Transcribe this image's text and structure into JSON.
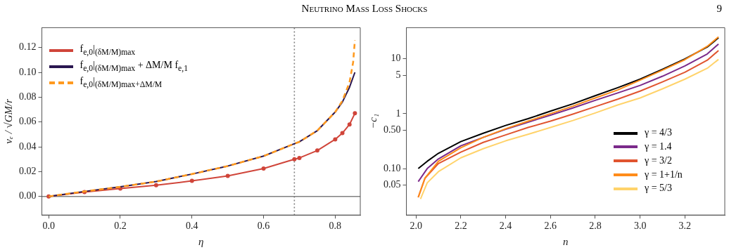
{
  "chart_data": [
    {
      "type": "line",
      "annotations": [
        "Neutrino Mass Loss Shocks",
        "9"
      ],
      "xlabel": "η",
      "ylabel": "vₑ / √GM/r",
      "xlim": [
        -0.019,
        0.87
      ],
      "ylim": [
        -0.015,
        0.136
      ],
      "xticks": [
        {
          "value": 0,
          "label": "0.0"
        },
        {
          "value": 0.2,
          "label": "0.2"
        },
        {
          "value": 0.4,
          "label": "0.4"
        },
        {
          "value": 0.6,
          "label": "0.6"
        },
        {
          "value": 0.8,
          "label": "0.8"
        }
      ],
      "yticks": [
        {
          "value": 0,
          "label": "0.00"
        },
        {
          "value": 0.02,
          "label": "0.02"
        },
        {
          "value": 0.04,
          "label": "0.04"
        },
        {
          "value": 0.06,
          "label": "0.06"
        },
        {
          "value": 0.08,
          "label": "0.08"
        },
        {
          "value": 0.1,
          "label": "0.10"
        },
        {
          "value": 0.12,
          "label": "0.12"
        }
      ],
      "legend": "top left",
      "ref_lines": [
        {
          "axis": "x",
          "value": 0.686,
          "color": "#808080",
          "line_style": "dotted"
        },
        {
          "axis": "y",
          "value": 0,
          "color": "#808080",
          "line_style": "solid"
        }
      ],
      "series": [
        {
          "name": "f$_{e,0}$|$_{(δM/M)max}$",
          "color": "#d0453a",
          "marker": "circle",
          "x": [
            0,
            0.1,
            0.2,
            0.3,
            0.4,
            0.5,
            0.6,
            0.686,
            0.7,
            0.75,
            0.8,
            0.82,
            0.84,
            0.855
          ],
          "values": [
            0,
            0.0035,
            0.0063,
            0.009,
            0.0125,
            0.0165,
            0.0225,
            0.03,
            0.031,
            0.037,
            0.046,
            0.051,
            0.058,
            0.067
          ]
        },
        {
          "name": "f$_{e,0}$|$_{(δM/M)max}$ + ΔM/M f$_{e,1}$",
          "color": "#2a1650",
          "x": [
            0,
            0.1,
            0.2,
            0.3,
            0.4,
            0.5,
            0.6,
            0.686,
            0.7,
            0.75,
            0.8,
            0.82,
            0.84,
            0.855
          ],
          "values": [
            0,
            0.004,
            0.0077,
            0.012,
            0.018,
            0.0245,
            0.0325,
            0.0425,
            0.044,
            0.053,
            0.068,
            0.076,
            0.088,
            0.1
          ]
        },
        {
          "name": "f$_{e,0}$|$_{(δM/M)max+ΔM/M}$",
          "color": "#ff9a1f",
          "line_style": "dashed",
          "x": [
            0,
            0.1,
            0.2,
            0.3,
            0.4,
            0.5,
            0.6,
            0.686,
            0.7,
            0.75,
            0.8,
            0.82,
            0.84,
            0.85,
            0.855
          ],
          "values": [
            0,
            0.004,
            0.0077,
            0.012,
            0.018,
            0.0245,
            0.0325,
            0.0425,
            0.044,
            0.053,
            0.068,
            0.077,
            0.092,
            0.108,
            0.126
          ]
        }
      ]
    },
    {
      "type": "line",
      "xlabel": "n",
      "ylabel": "−c₁",
      "log": "y",
      "xlim": [
        1.957,
        3.378
      ],
      "ylim": [
        0.0143,
        36.7
      ],
      "xticks": [
        {
          "value": 2,
          "label": "2.0"
        },
        {
          "value": 2.2,
          "label": "2.2"
        },
        {
          "value": 2.4,
          "label": "2.4"
        },
        {
          "value": 2.6,
          "label": "2.6"
        },
        {
          "value": 2.8,
          "label": "2.8"
        },
        {
          "value": 3,
          "label": "3.0"
        },
        {
          "value": 3.2,
          "label": "3.2"
        }
      ],
      "yticks": [
        0.05,
        {
          "value": 0.1,
          "label": "0.10"
        },
        {
          "value": 0.5,
          "label": "0.50"
        },
        1,
        5,
        10
      ],
      "legend": "right",
      "series": [
        {
          "name": "γ = 4/3",
          "color": "#000000",
          "x": [
            2.01,
            2.05,
            2.1,
            2.2,
            2.3,
            2.4,
            2.5,
            2.6,
            2.7,
            2.8,
            2.9,
            3.0,
            3.1,
            3.2,
            3.3,
            3.35
          ],
          "values": [
            0.1,
            0.136,
            0.19,
            0.31,
            0.44,
            0.61,
            0.81,
            1.11,
            1.51,
            2.12,
            2.97,
            4.24,
            6.4,
            9.9,
            16.3,
            24
          ]
        },
        {
          "name": "γ = 1.4",
          "color": "#7b2a8a",
          "x": [
            2.01,
            2.05,
            2.1,
            2.2,
            2.3,
            2.4,
            2.5,
            2.6,
            2.7,
            2.8,
            2.9,
            3.0,
            3.1,
            3.2,
            3.3,
            3.35
          ],
          "values": [
            0.058,
            0.1,
            0.15,
            0.26,
            0.37,
            0.52,
            0.7,
            0.94,
            1.27,
            1.75,
            2.38,
            3.27,
            4.8,
            7.4,
            12.2,
            18.5
          ]
        },
        {
          "name": "γ = 3/2",
          "color": "#e0542f",
          "x": [
            2.01,
            2.04,
            2.1,
            2.2,
            2.3,
            2.4,
            2.5,
            2.6,
            2.7,
            2.8,
            2.9,
            3.0,
            3.1,
            3.2,
            3.3,
            3.35
          ],
          "values": [
            0.03,
            0.067,
            0.124,
            0.2,
            0.3,
            0.41,
            0.56,
            0.73,
            0.98,
            1.34,
            1.83,
            2.57,
            3.78,
            5.66,
            9.4,
            14.1
          ]
        },
        {
          "name": "γ = 1+1/n",
          "color": "#ff8c1a",
          "x": [
            2.01,
            2.04,
            2.1,
            2.2,
            2.3,
            2.4,
            2.5,
            2.6,
            2.7,
            2.8,
            2.9,
            3.0,
            3.1,
            3.2,
            3.3,
            3.35
          ],
          "values": [
            0.03,
            0.067,
            0.136,
            0.24,
            0.37,
            0.53,
            0.73,
            1.0,
            1.37,
            1.93,
            2.7,
            4.08,
            6.2,
            9.6,
            16.8,
            25
          ]
        },
        {
          "name": "γ = 5/3",
          "color": "#ffd36b",
          "x": [
            2.02,
            2.05,
            2.1,
            2.2,
            2.3,
            2.4,
            2.5,
            2.6,
            2.7,
            2.8,
            2.9,
            3.0,
            3.1,
            3.2,
            3.3,
            3.35
          ],
          "values": [
            0.028,
            0.055,
            0.088,
            0.157,
            0.23,
            0.32,
            0.42,
            0.56,
            0.75,
            1.03,
            1.44,
            1.93,
            2.83,
            4.24,
            6.7,
            9.7
          ]
        }
      ]
    }
  ]
}
